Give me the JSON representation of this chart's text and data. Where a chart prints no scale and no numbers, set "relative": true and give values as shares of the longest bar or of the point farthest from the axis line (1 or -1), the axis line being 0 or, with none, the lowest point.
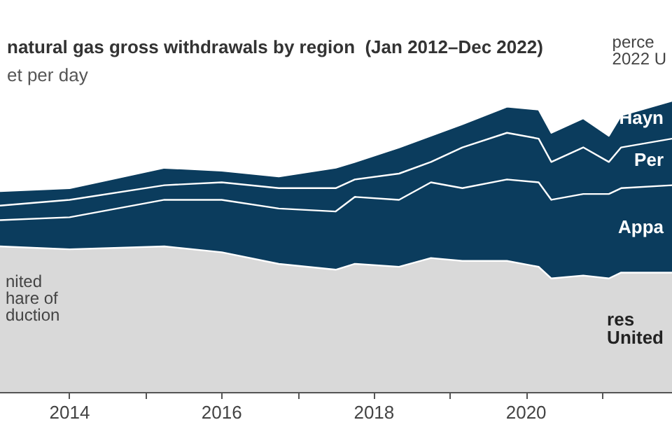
{
  "chart_data": {
    "type": "area",
    "stacked": true,
    "relative": true,
    "title": "natural gas gross withdrawals by region  (Jan 2012–Dec 2022)",
    "subtitle": "et per day",
    "annotations": [
      "perce\n2022 U",
      "nited\nhare of\nduction"
    ],
    "x": [
      "2013-02",
      "2014-01",
      "2015-04",
      "2016-01",
      "2016-10",
      "2017-07",
      "2017-10",
      "2018-05",
      "2018-10",
      "2019-03",
      "2019-10",
      "2020-03",
      "2020-05",
      "2020-10",
      "2021-02",
      "2021-04",
      "2021-12"
    ],
    "xlim": [
      "2013-02",
      "2021-12"
    ],
    "xticks": [
      {
        "value": "2014",
        "label": "2014"
      },
      {
        "value": "2015",
        "label": null
      },
      {
        "value": "2016",
        "label": "2016"
      },
      {
        "value": "2017",
        "label": null
      },
      {
        "value": "2018",
        "label": "2018"
      },
      {
        "value": "2019",
        "label": null
      },
      {
        "value": "2020",
        "label": "2020"
      },
      {
        "value": "2021",
        "label": null
      }
    ],
    "legend": false,
    "series": [
      {
        "name": "res\nUnited",
        "color": "#d9d9d9",
        "values": [
          0.5,
          0.49,
          0.5,
          0.48,
          0.44,
          0.42,
          0.44,
          0.43,
          0.46,
          0.45,
          0.45,
          0.43,
          0.39,
          0.4,
          0.39,
          0.41,
          0.41
        ]
      },
      {
        "name": "Appa",
        "color": "#0b3c5d",
        "values": [
          0.09,
          0.11,
          0.16,
          0.18,
          0.19,
          0.2,
          0.23,
          0.23,
          0.26,
          0.25,
          0.28,
          0.29,
          0.27,
          0.28,
          0.29,
          0.29,
          0.3
        ]
      },
      {
        "name": "Per",
        "color": "#0b3c5d",
        "values": [
          0.05,
          0.06,
          0.05,
          0.06,
          0.07,
          0.08,
          0.06,
          0.09,
          0.07,
          0.14,
          0.16,
          0.15,
          0.13,
          0.16,
          0.11,
          0.14,
          0.16
        ]
      },
      {
        "name": "Hayn",
        "color": "#0b3c5d",
        "values": [
          0.05,
          0.04,
          0.06,
          0.04,
          0.04,
          0.07,
          0.06,
          0.09,
          0.09,
          0.08,
          0.09,
          0.1,
          0.1,
          0.1,
          0.09,
          0.11,
          0.13
        ]
      }
    ]
  }
}
